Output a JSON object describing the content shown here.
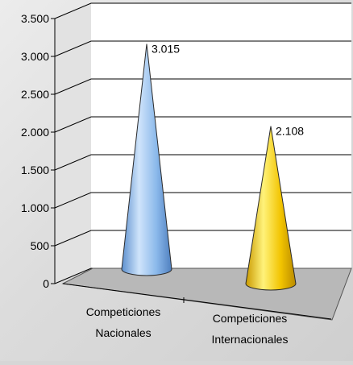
{
  "chart_data": {
    "type": "bar",
    "style": "3d-cone",
    "categories": [
      "Competiciones Nacionales",
      "Competiciones Internacionales"
    ],
    "category_lines": [
      [
        "Competiciones",
        "Nacionales"
      ],
      [
        "Competiciones",
        "Internacionales"
      ]
    ],
    "values": [
      3015,
      2108
    ],
    "data_labels": [
      "3.015",
      "2.108"
    ],
    "y_ticks": [
      0,
      500,
      1000,
      1500,
      2000,
      2500,
      3000,
      3500
    ],
    "y_tick_labels": [
      "0",
      "500",
      "1.000",
      "1.500",
      "2.000",
      "2.500",
      "3.000",
      "3.500"
    ],
    "ylim": [
      0,
      3500
    ],
    "grid": true,
    "legend": "none",
    "colors": {
      "series": [
        "#8ab8ea",
        "#f2c400"
      ],
      "floor": "#b8b8b8",
      "wall": "#ffffff",
      "gridline": "#000000"
    }
  }
}
